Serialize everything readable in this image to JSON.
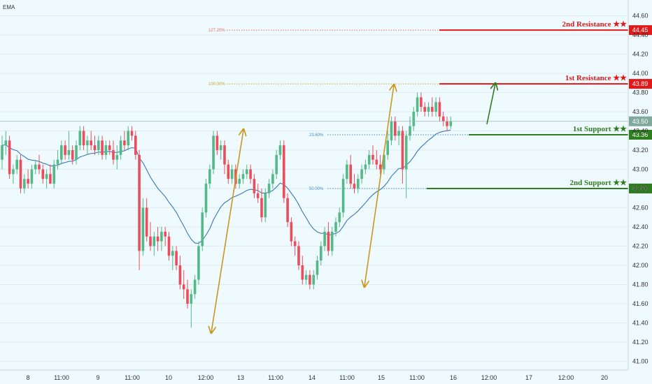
{
  "indicator_label": "EMA",
  "chart_data": {
    "type": "candlestick",
    "ylim": [
      40.95,
      44.65
    ],
    "y_ticks": [
      "41.00",
      "41.20",
      "41.40",
      "41.60",
      "41.80",
      "42.00",
      "42.20",
      "42.40",
      "42.60",
      "42.80",
      "43.00",
      "43.20",
      "43.40",
      "43.60",
      "43.80",
      "44.00",
      "44.20",
      "44.40",
      "44.60"
    ],
    "x_ticks": [
      "8",
      "11:00",
      "9",
      "11:00",
      "10",
      "12:00",
      "13",
      "11:00",
      "14",
      "11:00",
      "15",
      "11:00",
      "16",
      "12:00",
      "17",
      "12:00",
      "20"
    ],
    "current_price": "43.50",
    "levels": [
      {
        "name": "2nd Resistance ★★",
        "value": "44.45",
        "color": "#e01919"
      },
      {
        "name": "1st Resistance ★★",
        "value": "43.89",
        "color": "#e01919"
      },
      {
        "name": "1st Support ★★",
        "value": "43.36",
        "color": "#2e7d1e"
      },
      {
        "name": "2nd Support ★★",
        "value": "42.80",
        "color": "#2e7d1e"
      }
    ],
    "fib_levels": [
      {
        "label": "127.20%",
        "value": 44.45,
        "color": "#e06b5e"
      },
      {
        "label": "100.00%",
        "value": 43.89,
        "color": "#c9a227"
      },
      {
        "label": "23.60%",
        "value": 43.36,
        "color": "#4a8fb8"
      },
      {
        "label": "50.00%",
        "value": 42.8,
        "color": "#4a8fb8"
      }
    ],
    "candles": [
      [
        43.1,
        43.35,
        43.0,
        43.25
      ],
      [
        43.25,
        43.4,
        43.15,
        43.3
      ],
      [
        43.3,
        43.35,
        42.9,
        42.95
      ],
      [
        42.95,
        43.05,
        42.85,
        43.0
      ],
      [
        43.0,
        43.15,
        42.95,
        43.1
      ],
      [
        43.1,
        43.15,
        42.75,
        42.8
      ],
      [
        42.8,
        42.95,
        42.75,
        42.9
      ],
      [
        42.9,
        43.0,
        42.8,
        42.85
      ],
      [
        42.85,
        43.05,
        42.8,
        43.0
      ],
      [
        43.0,
        43.1,
        42.95,
        43.05
      ],
      [
        43.05,
        43.15,
        42.95,
        43.0
      ],
      [
        43.0,
        43.05,
        42.85,
        42.9
      ],
      [
        42.9,
        43.0,
        42.8,
        42.95
      ],
      [
        42.95,
        43.05,
        42.85,
        42.85
      ],
      [
        42.85,
        43.1,
        42.8,
        43.05
      ],
      [
        43.05,
        43.2,
        43.0,
        43.1
      ],
      [
        43.1,
        43.3,
        43.05,
        43.25
      ],
      [
        43.25,
        43.3,
        43.1,
        43.15
      ],
      [
        43.15,
        43.4,
        43.1,
        43.2
      ],
      [
        43.2,
        43.25,
        43.05,
        43.1
      ],
      [
        43.1,
        43.3,
        43.05,
        43.25
      ],
      [
        43.25,
        43.45,
        43.2,
        43.4
      ],
      [
        43.4,
        43.45,
        43.2,
        43.25
      ],
      [
        43.25,
        43.35,
        43.15,
        43.3
      ],
      [
        43.3,
        43.4,
        43.2,
        43.25
      ],
      [
        43.25,
        43.35,
        43.15,
        43.2
      ],
      [
        43.2,
        43.35,
        43.15,
        43.3
      ],
      [
        43.3,
        43.35,
        43.1,
        43.15
      ],
      [
        43.15,
        43.3,
        43.1,
        43.25
      ],
      [
        43.25,
        43.3,
        43.15,
        43.2
      ],
      [
        43.2,
        43.3,
        43.05,
        43.1
      ],
      [
        43.1,
        43.25,
        43.0,
        43.15
      ],
      [
        43.15,
        43.35,
        43.1,
        43.3
      ],
      [
        43.3,
        43.4,
        43.2,
        43.25
      ],
      [
        43.25,
        43.45,
        43.2,
        43.4
      ],
      [
        43.4,
        43.45,
        43.3,
        43.35
      ],
      [
        43.35,
        43.4,
        43.1,
        43.15
      ],
      [
        43.15,
        43.2,
        41.95,
        42.15
      ],
      [
        42.15,
        42.7,
        42.1,
        42.6
      ],
      [
        42.6,
        42.7,
        42.25,
        42.3
      ],
      [
        42.3,
        42.45,
        42.15,
        42.2
      ],
      [
        42.2,
        42.35,
        42.1,
        42.3
      ],
      [
        42.3,
        42.4,
        42.15,
        42.25
      ],
      [
        42.25,
        42.4,
        42.15,
        42.35
      ],
      [
        42.35,
        42.4,
        42.2,
        42.3
      ],
      [
        42.3,
        42.35,
        42.05,
        42.1
      ],
      [
        42.1,
        42.2,
        41.95,
        42.15
      ],
      [
        42.15,
        42.2,
        41.95,
        42.0
      ],
      [
        42.0,
        42.1,
        41.75,
        41.8
      ],
      [
        41.8,
        41.95,
        41.65,
        41.75
      ],
      [
        41.75,
        41.85,
        41.55,
        41.6
      ],
      [
        41.6,
        41.75,
        41.35,
        41.7
      ],
      [
        41.7,
        41.9,
        41.65,
        41.85
      ],
      [
        41.85,
        42.25,
        41.8,
        42.2
      ],
      [
        42.2,
        42.6,
        42.15,
        42.55
      ],
      [
        42.55,
        42.9,
        42.5,
        42.85
      ],
      [
        42.85,
        43.05,
        42.8,
        43.0
      ],
      [
        43.0,
        43.4,
        42.95,
        43.35
      ],
      [
        43.35,
        43.4,
        43.15,
        43.2
      ],
      [
        43.2,
        43.3,
        43.1,
        43.25
      ],
      [
        43.25,
        43.3,
        42.95,
        43.05
      ],
      [
        43.05,
        43.1,
        42.85,
        42.9
      ],
      [
        42.9,
        43.05,
        42.85,
        43.0
      ],
      [
        43.0,
        43.05,
        42.8,
        42.85
      ],
      [
        42.85,
        42.95,
        42.8,
        42.9
      ],
      [
        42.9,
        43.0,
        42.85,
        42.95
      ],
      [
        42.95,
        43.05,
        42.9,
        43.0
      ],
      [
        43.0,
        43.05,
        42.85,
        42.9
      ],
      [
        42.9,
        42.95,
        42.7,
        42.75
      ],
      [
        42.75,
        42.85,
        42.65,
        42.7
      ],
      [
        42.7,
        42.8,
        42.45,
        42.5
      ],
      [
        42.5,
        42.8,
        42.45,
        42.75
      ],
      [
        42.75,
        42.9,
        42.7,
        42.85
      ],
      [
        42.85,
        43.0,
        42.8,
        42.95
      ],
      [
        42.95,
        43.2,
        42.9,
        43.15
      ],
      [
        43.15,
        43.3,
        43.1,
        43.25
      ],
      [
        43.25,
        43.3,
        42.65,
        42.7
      ],
      [
        42.7,
        42.75,
        42.4,
        42.45
      ],
      [
        42.45,
        42.5,
        42.2,
        42.25
      ],
      [
        42.25,
        42.3,
        42.1,
        42.2
      ],
      [
        42.2,
        42.25,
        41.95,
        42.0
      ],
      [
        42.0,
        42.1,
        41.8,
        41.85
      ],
      [
        41.85,
        41.95,
        41.8,
        41.9
      ],
      [
        41.9,
        41.95,
        41.75,
        41.8
      ],
      [
        41.8,
        41.95,
        41.75,
        41.9
      ],
      [
        41.9,
        42.1,
        41.85,
        42.05
      ],
      [
        42.05,
        42.25,
        42.0,
        42.2
      ],
      [
        42.2,
        42.4,
        42.15,
        42.35
      ],
      [
        42.35,
        42.45,
        42.1,
        42.15
      ],
      [
        42.15,
        42.4,
        42.1,
        42.35
      ],
      [
        42.35,
        42.5,
        42.3,
        42.45
      ],
      [
        42.45,
        42.6,
        42.4,
        42.55
      ],
      [
        42.55,
        42.95,
        42.5,
        42.9
      ],
      [
        42.9,
        43.1,
        42.85,
        43.05
      ],
      [
        43.05,
        43.15,
        42.8,
        42.85
      ],
      [
        42.85,
        42.95,
        42.75,
        42.8
      ],
      [
        42.8,
        42.95,
        42.75,
        42.9
      ],
      [
        42.9,
        43.05,
        42.85,
        43.0
      ],
      [
        43.0,
        43.1,
        42.95,
        43.05
      ],
      [
        43.05,
        43.2,
        43.0,
        43.15
      ],
      [
        43.15,
        43.25,
        43.05,
        43.1
      ],
      [
        43.1,
        43.2,
        43.0,
        43.05
      ],
      [
        43.05,
        43.15,
        42.95,
        43.0
      ],
      [
        43.0,
        43.2,
        42.95,
        43.15
      ],
      [
        43.15,
        43.4,
        43.1,
        43.3
      ],
      [
        43.3,
        43.55,
        43.25,
        43.5
      ],
      [
        43.5,
        43.55,
        43.3,
        43.35
      ],
      [
        43.35,
        43.45,
        43.25,
        43.4
      ],
      [
        43.4,
        43.45,
        42.85,
        43.0
      ],
      [
        43.0,
        43.4,
        42.7,
        43.35
      ],
      [
        43.35,
        43.55,
        43.3,
        43.45
      ],
      [
        43.45,
        43.65,
        43.4,
        43.6
      ],
      [
        43.6,
        43.8,
        43.55,
        43.75
      ],
      [
        43.75,
        43.8,
        43.6,
        43.65
      ],
      [
        43.65,
        43.7,
        43.55,
        43.6
      ],
      [
        43.6,
        43.7,
        43.55,
        43.65
      ],
      [
        43.65,
        43.75,
        43.55,
        43.6
      ],
      [
        43.6,
        43.75,
        43.55,
        43.7
      ],
      [
        43.7,
        43.75,
        43.5,
        43.55
      ],
      [
        43.55,
        43.6,
        43.45,
        43.5
      ],
      [
        43.5,
        43.55,
        43.4,
        43.45
      ],
      [
        43.45,
        43.55,
        43.42,
        43.5
      ]
    ]
  }
}
